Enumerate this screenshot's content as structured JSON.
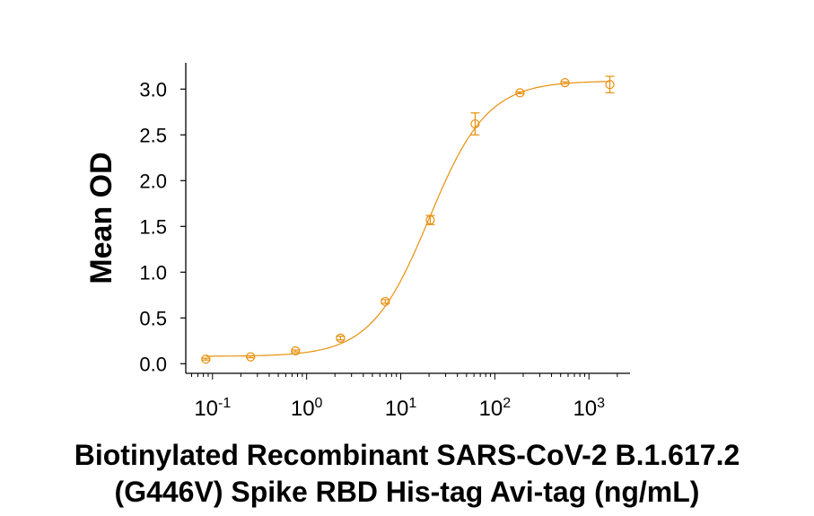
{
  "chart_data": {
    "type": "scatter",
    "title": "",
    "xlabel_lines": [
      "Biotinylated Recombinant SARS-CoV-2 B.1.617.2",
      "(G446V) Spike RBD His-tag Avi-tag (ng/mL)"
    ],
    "ylabel": "Mean OD",
    "xscale": "log",
    "xlim": [
      0.052,
      2730
    ],
    "ylim": [
      0,
      3.3
    ],
    "xticks": [
      {
        "value": 0.1,
        "base": "10",
        "exp": "-1"
      },
      {
        "value": 1,
        "base": "10",
        "exp": "0"
      },
      {
        "value": 10,
        "base": "10",
        "exp": "1"
      },
      {
        "value": 100,
        "base": "10",
        "exp": "2"
      },
      {
        "value": 1000,
        "base": "10",
        "exp": "3"
      }
    ],
    "yticks": [
      "0.0",
      "0.5",
      "1.0",
      "1.5",
      "2.0",
      "2.5",
      "3.0"
    ],
    "grid": false,
    "color": "#E8900F",
    "marker": "open-circle",
    "series": [
      {
        "x": [
          0.085,
          0.254,
          0.762,
          2.29,
          6.86,
          20.6,
          61.7,
          185,
          556,
          1667
        ],
        "y": [
          0.05,
          0.075,
          0.14,
          0.28,
          0.68,
          1.57,
          2.62,
          2.96,
          3.07,
          3.05
        ],
        "error": [
          0.01,
          0.01,
          0.01,
          0.02,
          0.02,
          0.05,
          0.12,
          0.01,
          0.01,
          0.09
        ]
      }
    ],
    "fit": {
      "model": "4PL",
      "bottom": 0.08,
      "top": 3.09,
      "ec50": 20,
      "hill": 1.4
    }
  }
}
